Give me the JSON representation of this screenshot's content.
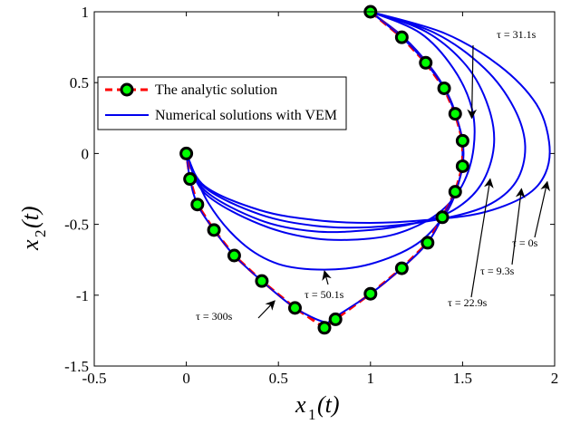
{
  "chart_data": {
    "type": "line",
    "xlabel": "x1(t)",
    "ylabel": "x2(t)",
    "xlim": [
      -0.5,
      2
    ],
    "ylim": [
      -1.5,
      1
    ],
    "xticks": [
      "-0.5",
      "0",
      "0.5",
      "1",
      "1.5",
      "2"
    ],
    "yticks": [
      "-1.5",
      "-1",
      "-0.5",
      "0",
      "0.5",
      "1"
    ],
    "legend": {
      "placement": "top-left",
      "entries": [
        "The analytic solution",
        "Numerical solutions with VEM"
      ]
    },
    "colors": {
      "analytic_line": "#ff0000",
      "marker_fill": "#00ff00",
      "marker_edge": "#000000",
      "numerical": "#0000ee"
    },
    "series": [
      {
        "name": "The analytic solution",
        "style": "dashed-with-markers",
        "x": [
          1.0,
          1.17,
          1.3,
          1.4,
          1.46,
          1.5,
          1.5,
          1.46,
          1.39,
          1.31,
          1.17,
          1.0,
          0.81,
          0.75,
          0.59,
          0.41,
          0.26,
          0.15,
          0.06,
          0.02,
          0.0
        ],
        "y": [
          1.0,
          0.82,
          0.64,
          0.46,
          0.28,
          0.09,
          -0.09,
          -0.27,
          -0.45,
          -0.63,
          -0.81,
          -0.99,
          -1.17,
          -1.23,
          -1.09,
          -0.9,
          -0.72,
          -0.54,
          -0.36,
          -0.18,
          0.0
        ]
      },
      {
        "name": "Numerical solutions with VEM",
        "curves": [
          {
            "label": "τ = 0s",
            "x": [
              1.0,
              1.4,
              1.7,
              1.9,
              1.97,
              1.95,
              1.84,
              1.6,
              1.3,
              1.0,
              0.7,
              0.4,
              0.1,
              0.0
            ],
            "y": [
              1.0,
              0.85,
              0.62,
              0.35,
              0.08,
              -0.14,
              -0.3,
              -0.42,
              -0.47,
              -0.49,
              -0.47,
              -0.4,
              -0.23,
              0.0
            ]
          },
          {
            "label": "τ = 9.3s",
            "x": [
              1.0,
              1.35,
              1.62,
              1.78,
              1.84,
              1.79,
              1.63,
              1.35,
              1.0,
              0.7,
              0.4,
              0.1,
              0.0
            ],
            "y": [
              1.0,
              0.85,
              0.6,
              0.32,
              0.05,
              -0.2,
              -0.37,
              -0.47,
              -0.52,
              -0.51,
              -0.43,
              -0.24,
              0.0
            ]
          },
          {
            "label": "τ = 22.9s",
            "x": [
              1.0,
              1.3,
              1.52,
              1.64,
              1.67,
              1.6,
              1.45,
              1.25,
              1.0,
              0.7,
              0.4,
              0.1,
              0.0
            ],
            "y": [
              1.0,
              0.86,
              0.62,
              0.33,
              0.05,
              -0.22,
              -0.4,
              -0.49,
              -0.54,
              -0.55,
              -0.47,
              -0.26,
              0.0
            ]
          },
          {
            "label": "τ = 31.1s",
            "x": [
              1.0,
              1.27,
              1.45,
              1.55,
              1.56,
              1.5,
              1.38,
              1.2,
              1.0,
              0.7,
              0.4,
              0.1,
              0.0
            ],
            "y": [
              1.0,
              0.85,
              0.6,
              0.32,
              0.04,
              -0.22,
              -0.41,
              -0.54,
              -0.6,
              -0.6,
              -0.5,
              -0.28,
              0.0
            ]
          },
          {
            "label": "τ = 50.1s",
            "x": [
              1.0,
              1.18,
              1.32,
              1.42,
              1.48,
              1.5,
              1.48,
              1.41,
              1.25,
              1.0,
              0.75,
              0.5,
              0.3,
              0.12,
              0.0
            ],
            "y": [
              1.0,
              0.82,
              0.62,
              0.42,
              0.2,
              0.0,
              -0.2,
              -0.42,
              -0.64,
              -0.78,
              -0.82,
              -0.78,
              -0.63,
              -0.35,
              0.0
            ]
          },
          {
            "label": "τ = 300s",
            "x": [
              1.0,
              1.17,
              1.3,
              1.4,
              1.46,
              1.5,
              1.5,
              1.46,
              1.39,
              1.31,
              1.17,
              1.0,
              0.8,
              0.75,
              0.59,
              0.41,
              0.26,
              0.15,
              0.06,
              0.02,
              0.0
            ],
            "y": [
              1.0,
              0.82,
              0.64,
              0.46,
              0.28,
              0.09,
              -0.09,
              -0.27,
              -0.45,
              -0.63,
              -0.81,
              -0.99,
              -1.16,
              -1.19,
              -1.09,
              -0.9,
              -0.72,
              -0.54,
              -0.36,
              -0.18,
              0.0
            ]
          }
        ]
      }
    ],
    "annotations": [
      {
        "text": "τ = 31.1s",
        "arrow_to": [
          1.55,
          0.25
        ]
      },
      {
        "text": "τ = 0s",
        "arrow_to": [
          1.96,
          -0.2
        ]
      },
      {
        "text": "τ = 9.3s",
        "arrow_to": [
          1.82,
          -0.25
        ]
      },
      {
        "text": "τ = 22.9s",
        "arrow_to": [
          1.65,
          -0.18
        ]
      },
      {
        "text": "τ = 50.1s",
        "arrow_to": [
          0.75,
          -0.83
        ]
      },
      {
        "text": "τ = 300s",
        "arrow_to": [
          0.48,
          -1.04
        ]
      }
    ]
  }
}
